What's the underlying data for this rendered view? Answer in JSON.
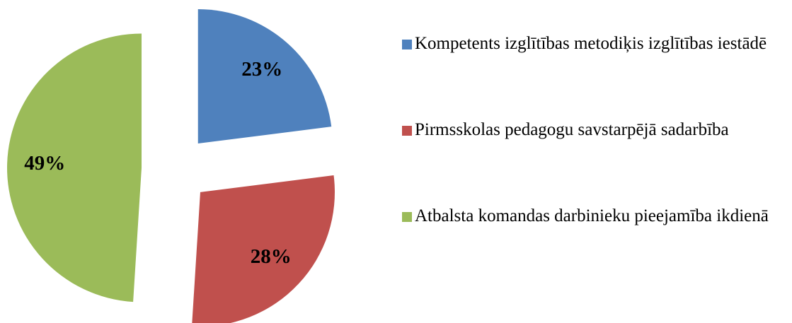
{
  "chart_data": {
    "type": "pie",
    "categories": [
      "Kompetents izglītības metodiķis izglītības iestādē",
      "Pirmsskolas pedagogu savstarpējā sadarbība",
      "Atbalsta komandas darbinieku pieejamība ikdienā"
    ],
    "values": [
      23,
      28,
      49
    ],
    "value_labels": [
      "23%",
      "28%",
      "49%"
    ],
    "colors": [
      "#4f81bd",
      "#c0504d",
      "#9bbb59"
    ],
    "legend": "right"
  }
}
